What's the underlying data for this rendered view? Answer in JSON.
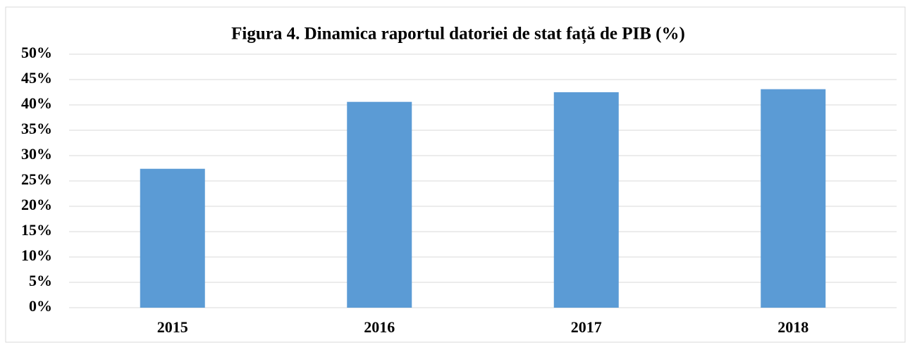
{
  "chart_data": {
    "type": "bar",
    "title": "Figura 4. Dinamica raportul datoriei de stat față de PIB (%)",
    "categories": [
      "2015",
      "2016",
      "2017",
      "2018"
    ],
    "values": [
      27.4,
      40.6,
      42.5,
      43.1
    ],
    "color": "#5b9bd5",
    "ylim": [
      0,
      50
    ],
    "yticks": [
      {
        "value": 0,
        "label": "0%"
      },
      {
        "value": 5,
        "label": "5%"
      },
      {
        "value": 10,
        "label": "10%"
      },
      {
        "value": 15,
        "label": "15%"
      },
      {
        "value": 20,
        "label": "20%"
      },
      {
        "value": 25,
        "label": "25%"
      },
      {
        "value": 30,
        "label": "30%"
      },
      {
        "value": 35,
        "label": "35%"
      },
      {
        "value": 40,
        "label": "40%"
      },
      {
        "value": 45,
        "label": "45%"
      },
      {
        "value": 50,
        "label": "50%"
      }
    ],
    "grid": true
  }
}
